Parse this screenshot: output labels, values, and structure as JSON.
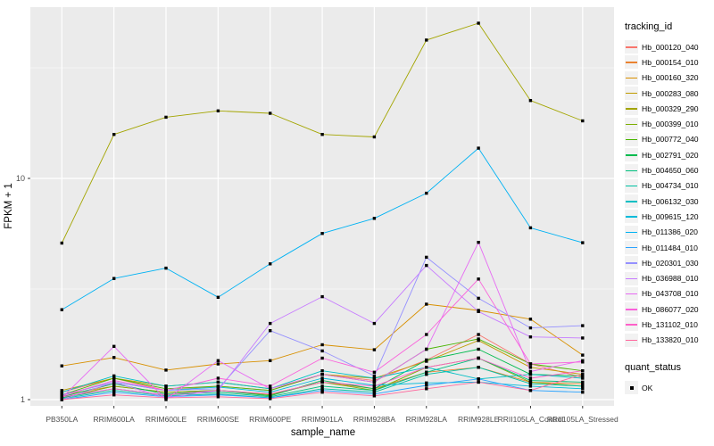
{
  "chart_data": {
    "type": "line",
    "title": "",
    "xlabel": "sample_name",
    "ylabel": "FPKM + 1",
    "y_scale": "log10",
    "ylim": [
      0.94,
      59
    ],
    "grid": true,
    "legend_position": "right",
    "y_ticks": [
      {
        "value": 1,
        "label": "1"
      },
      {
        "value": 10,
        "label": "10"
      }
    ],
    "y_minor_ticks": [
      3.162,
      31.62
    ],
    "categories": [
      "PB350LA",
      "RRIM600LA",
      "RRIM600LE",
      "RRIM600SE",
      "RRIM600PE",
      "RRIM901LA",
      "RRIM928BA",
      "RRIM928LA",
      "RRIM928LE",
      "RRII105LA_Control",
      "RRII105LA_Stressed"
    ],
    "point_shape": "square",
    "point_color": "#000000",
    "series": [
      {
        "name": "Hb_000120_040",
        "color": "#F8766D",
        "values": [
          1.08,
          1.25,
          1.1,
          1.15,
          1.1,
          1.3,
          1.22,
          1.51,
          1.97,
          1.45,
          1.26
        ]
      },
      {
        "name": "Hb_000154_010",
        "color": "#EA8331",
        "values": [
          1.05,
          1.15,
          1.08,
          1.1,
          1.06,
          1.2,
          1.12,
          1.33,
          1.4,
          1.2,
          1.18
        ]
      },
      {
        "name": "Hb_000160_320",
        "color": "#D89000",
        "values": [
          1.42,
          1.55,
          1.36,
          1.45,
          1.5,
          1.77,
          1.68,
          2.7,
          2.53,
          2.31,
          1.59
        ]
      },
      {
        "name": "Hb_000283_080",
        "color": "#C09B00",
        "values": [
          1.1,
          1.25,
          1.15,
          1.2,
          1.12,
          1.3,
          1.25,
          1.49,
          1.85,
          1.4,
          1.3
        ]
      },
      {
        "name": "Hb_000329_290",
        "color": "#A3A500",
        "values": [
          5.1,
          15.8,
          18.9,
          20.2,
          19.7,
          15.8,
          15.4,
          42.2,
          50.3,
          22.5,
          18.2
        ]
      },
      {
        "name": "Hb_000399_010",
        "color": "#7CAE00",
        "values": [
          1.02,
          1.15,
          1.08,
          1.1,
          1.05,
          1.2,
          1.1,
          1.4,
          1.54,
          1.2,
          1.15
        ]
      },
      {
        "name": "Hb_000772_040",
        "color": "#49B500",
        "values": [
          1.05,
          1.25,
          1.12,
          1.15,
          1.1,
          1.3,
          1.2,
          1.69,
          1.88,
          1.45,
          1.35
        ]
      },
      {
        "name": "Hb_002791_020",
        "color": "#00BB4E",
        "values": [
          1.03,
          1.18,
          1.06,
          1.1,
          1.04,
          1.22,
          1.12,
          1.51,
          1.69,
          1.3,
          1.28
        ]
      },
      {
        "name": "Hb_004650_060",
        "color": "#00BF7D",
        "values": [
          1.02,
          1.12,
          1.05,
          1.08,
          1.03,
          1.15,
          1.1,
          1.33,
          1.54,
          1.22,
          1.2
        ]
      },
      {
        "name": "Hb_004734_010",
        "color": "#00C1A3",
        "values": [
          1.01,
          1.1,
          1.04,
          1.06,
          1.02,
          1.12,
          1.08,
          1.3,
          1.4,
          1.18,
          1.15
        ]
      },
      {
        "name": "Hb_006132_030",
        "color": "#00BFC4",
        "values": [
          1.08,
          1.28,
          1.15,
          1.2,
          1.12,
          1.35,
          1.25,
          1.4,
          1.24,
          1.3,
          1.25
        ]
      },
      {
        "name": "Hb_009615_120",
        "color": "#00BBDA",
        "values": [
          1.05,
          1.2,
          1.1,
          1.14,
          1.08,
          1.25,
          1.16,
          1.19,
          1.2,
          1.15,
          1.12
        ]
      },
      {
        "name": "Hb_011386_020",
        "color": "#00B2F3",
        "values": [
          2.55,
          3.53,
          3.93,
          2.9,
          4.11,
          5.64,
          6.6,
          8.57,
          13.7,
          5.98,
          5.12
        ]
      },
      {
        "name": "Hb_011484_010",
        "color": "#29A3FF",
        "values": [
          1.0,
          1.08,
          1.03,
          1.05,
          1.02,
          1.1,
          1.06,
          1.16,
          1.24,
          1.1,
          1.08
        ]
      },
      {
        "name": "Hb_020301_030",
        "color": "#9590FF",
        "values": [
          1.05,
          1.2,
          1.1,
          1.12,
          2.05,
          1.66,
          1.28,
          4.4,
          2.87,
          2.11,
          2.16
        ]
      },
      {
        "name": "Hb_036988_010",
        "color": "#C77CFF",
        "values": [
          1.0,
          1.2,
          1.02,
          1.1,
          2.21,
          2.92,
          2.21,
          4.04,
          2.5,
          1.92,
          1.9
        ]
      },
      {
        "name": "Hb_043708_010",
        "color": "#E76BF3",
        "values": [
          1.02,
          1.74,
          1.0,
          1.5,
          1.12,
          1.3,
          1.2,
          1.69,
          5.14,
          1.34,
          1.5
        ]
      },
      {
        "name": "Hb_086077_020",
        "color": "#FA62DB",
        "values": [
          1.04,
          1.22,
          1.1,
          1.25,
          1.15,
          1.54,
          1.33,
          1.97,
          3.51,
          1.45,
          1.48
        ]
      },
      {
        "name": "Hb_131102_010",
        "color": "#FF61C9",
        "values": [
          1.03,
          1.12,
          1.05,
          1.1,
          1.06,
          1.2,
          1.15,
          1.4,
          1.54,
          1.25,
          1.35
        ]
      },
      {
        "name": "Hb_133820_010",
        "color": "#FF689E",
        "values": [
          1.0,
          1.05,
          1.02,
          1.03,
          1.01,
          1.08,
          1.04,
          1.12,
          1.2,
          1.1,
          1.3
        ]
      }
    ],
    "legend": {
      "color_title": "tracking_id",
      "shape_title": "quant_status",
      "shape_items": [
        {
          "label": "OK"
        }
      ]
    },
    "colors": {
      "panel_background": "#EBEBEB",
      "gridline": "#FFFFFF",
      "tick_text": "#4D4D4D",
      "tick_mark": "#333333",
      "legend_key_background": "#F2F2F2"
    }
  }
}
